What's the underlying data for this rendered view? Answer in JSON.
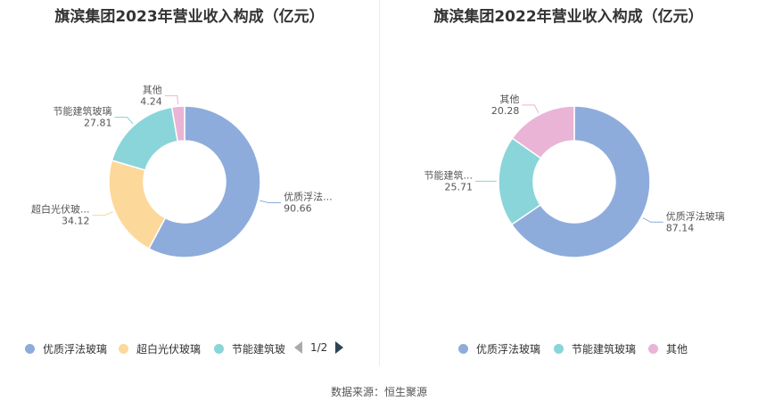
{
  "chart_data": [
    {
      "type": "pie",
      "title": "旗滨集团2023年营业收入构成（亿元）",
      "slices": [
        {
          "label": "优质浮法玻璃",
          "display_label": "优质浮法...",
          "value": 90.66,
          "color": "#8eacdb"
        },
        {
          "label": "超白光伏玻璃",
          "display_label": "超白光伏玻...",
          "value": 34.12,
          "color": "#fdd89b"
        },
        {
          "label": "节能建筑玻璃",
          "display_label": "节能建筑玻璃",
          "value": 27.81,
          "color": "#8ad5d9"
        },
        {
          "label": "其他",
          "display_label": "其他",
          "value": 4.24,
          "color": "#e9b4d6"
        }
      ],
      "legend": {
        "position": "bottom",
        "items": [
          "优质浮法玻璃",
          "超白光伏玻璃",
          "节能建筑玻"
        ],
        "pager": "1/2"
      }
    },
    {
      "type": "pie",
      "title": "旗滨集团2022年营业收入构成（亿元）",
      "slices": [
        {
          "label": "优质浮法玻璃",
          "display_label": "优质浮法玻璃",
          "value": 87.14,
          "color": "#8eacdb"
        },
        {
          "label": "节能建筑玻璃",
          "display_label": "节能建筑...",
          "value": 25.71,
          "color": "#8ad5d9"
        },
        {
          "label": "其他",
          "display_label": "其他",
          "value": 20.28,
          "color": "#e9b4d6"
        }
      ],
      "legend": {
        "position": "bottom",
        "items": [
          "优质浮法玻璃",
          "节能建筑玻璃",
          "其他"
        ]
      }
    }
  ],
  "source": "数据来源：恒生聚源"
}
